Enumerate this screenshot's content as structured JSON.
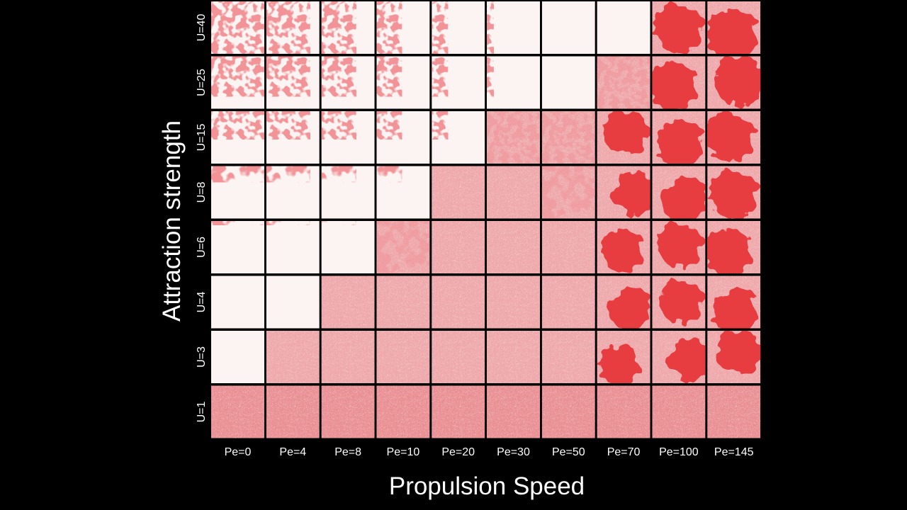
{
  "y_axis_title": "Attraction strength",
  "x_axis_title": "Propulsion Speed",
  "rows": [
    "U=40",
    "U=25",
    "U=15",
    "U=8",
    "U=6",
    "U=4",
    "U=3",
    "U=1"
  ],
  "columns": [
    "Pe=0",
    "Pe=4",
    "Pe=8",
    "Pe=10",
    "Pe=20",
    "Pe=30",
    "Pe=50",
    "Pe=70",
    "Pe=100",
    "Pe=145"
  ]
}
